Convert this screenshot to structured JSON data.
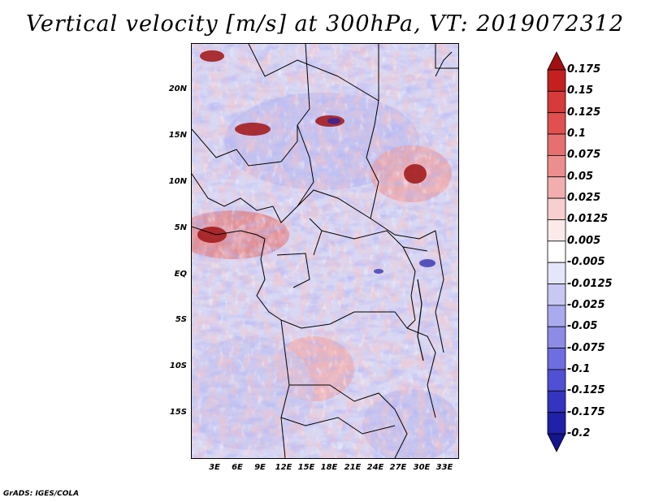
{
  "title": "Vertical velocity [m/s] at 300hPa, VT: 2019072312",
  "credit": "GrADS: IGES/COLA",
  "map": {
    "lat_labels": [
      "20N",
      "15N",
      "10N",
      "5N",
      "EQ",
      "5S",
      "10S",
      "15S"
    ],
    "lon_labels": [
      "3E",
      "6E",
      "9E",
      "12E",
      "15E",
      "18E",
      "21E",
      "24E",
      "27E",
      "30E",
      "33E"
    ],
    "field": "vertical velocity",
    "level": "300hPa",
    "valid_time": "2019072312"
  },
  "colorbar": {
    "labels": [
      "0.175",
      "0.15",
      "0.125",
      "0.1",
      "0.075",
      "0.05",
      "0.025",
      "0.0125",
      "0.005",
      "-0.005",
      "-0.0125",
      "-0.025",
      "-0.05",
      "-0.075",
      "-0.1",
      "-0.125",
      "-0.175",
      "-0.2"
    ],
    "colors": [
      "#a01010",
      "#c42020",
      "#d63a3a",
      "#e05050",
      "#e67070",
      "#ec8e8e",
      "#f2aeae",
      "#f8cfcf",
      "#fceaea",
      "#ffffff",
      "#e6e6fa",
      "#c8c8f2",
      "#aaaaee",
      "#8c8ce6",
      "#6e6ee0",
      "#5050d4",
      "#3434c0",
      "#2020a8",
      "#14148c"
    ]
  }
}
